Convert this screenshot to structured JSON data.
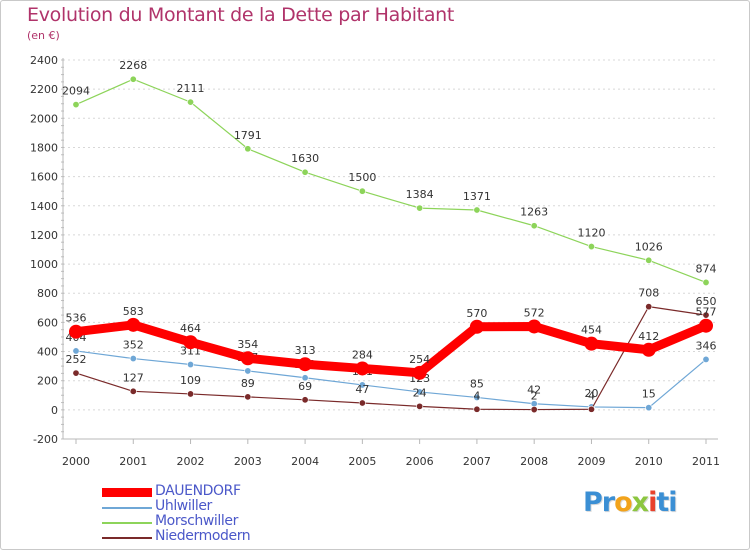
{
  "title": "Evolution du Montant de la Dette par Habitant",
  "unit": "(en €)",
  "logo": {
    "parts": [
      {
        "text": "Pr",
        "color": "#3b8fd4"
      },
      {
        "text": "o",
        "color": "#f2a31b"
      },
      {
        "text": "x",
        "color": "#8cc63f"
      },
      {
        "text": "i",
        "color": "#e8412c"
      },
      {
        "text": "ti",
        "color": "#3b8fd4"
      }
    ]
  },
  "chart_data": {
    "type": "line",
    "x": [
      "2000",
      "2001",
      "2002",
      "2003",
      "2004",
      "2005",
      "2006",
      "2007",
      "2008",
      "2009",
      "2010",
      "2011"
    ],
    "ylim": [
      -200,
      2400
    ],
    "yticks": [
      -200,
      0,
      200,
      400,
      600,
      800,
      1000,
      1200,
      1400,
      1600,
      1800,
      2000,
      2200,
      2400
    ],
    "grid": "horizontal dotted",
    "legend_position": "bottom-left",
    "series": [
      {
        "name": "Morschwiller",
        "color": "#8dd45a",
        "values": [
          2094,
          2268,
          2111,
          1791,
          1630,
          1500,
          1384,
          1371,
          1263,
          1120,
          1026,
          874
        ],
        "labels": [
          "2094",
          "2268",
          "2111",
          "1791",
          "1630",
          "1500",
          "1384",
          "1371",
          "1263",
          "1120",
          "1026",
          "874"
        ]
      },
      {
        "name": "Uhlwiller",
        "color": "#6fa7d6",
        "values": [
          404,
          352,
          311,
          267,
          220,
          171,
          123,
          85,
          42,
          20,
          15,
          346
        ],
        "labels": [
          "404",
          "352",
          "311",
          "267",
          "220",
          "171",
          "123",
          "85",
          "42",
          "20",
          "15",
          "346"
        ]
      },
      {
        "name": "Niedermodern",
        "color": "#7a2a2a",
        "values": [
          252,
          127,
          109,
          89,
          69,
          47,
          24,
          4,
          2,
          4,
          708,
          650
        ],
        "labels": [
          "252",
          "127",
          "109",
          "89",
          "69",
          "47",
          "24",
          "4",
          "2",
          "4",
          "708",
          "650"
        ]
      },
      {
        "name": "DAUENDORF",
        "color": "#ff0000",
        "values": [
          536,
          583,
          464,
          354,
          313,
          284,
          254,
          570,
          572,
          454,
          412,
          577
        ],
        "labels": [
          "536",
          "583",
          "464",
          "354",
          "313",
          "284",
          "254",
          "570",
          "572",
          "454",
          "412",
          "577"
        ]
      }
    ],
    "legend": [
      {
        "name": "DAUENDORF",
        "color": "#ff0000"
      },
      {
        "name": "Uhlwiller",
        "color": "#6fa7d6"
      },
      {
        "name": "Morschwiller",
        "color": "#8dd45a"
      },
      {
        "name": "Niedermodern",
        "color": "#7a2a2a"
      }
    ]
  }
}
